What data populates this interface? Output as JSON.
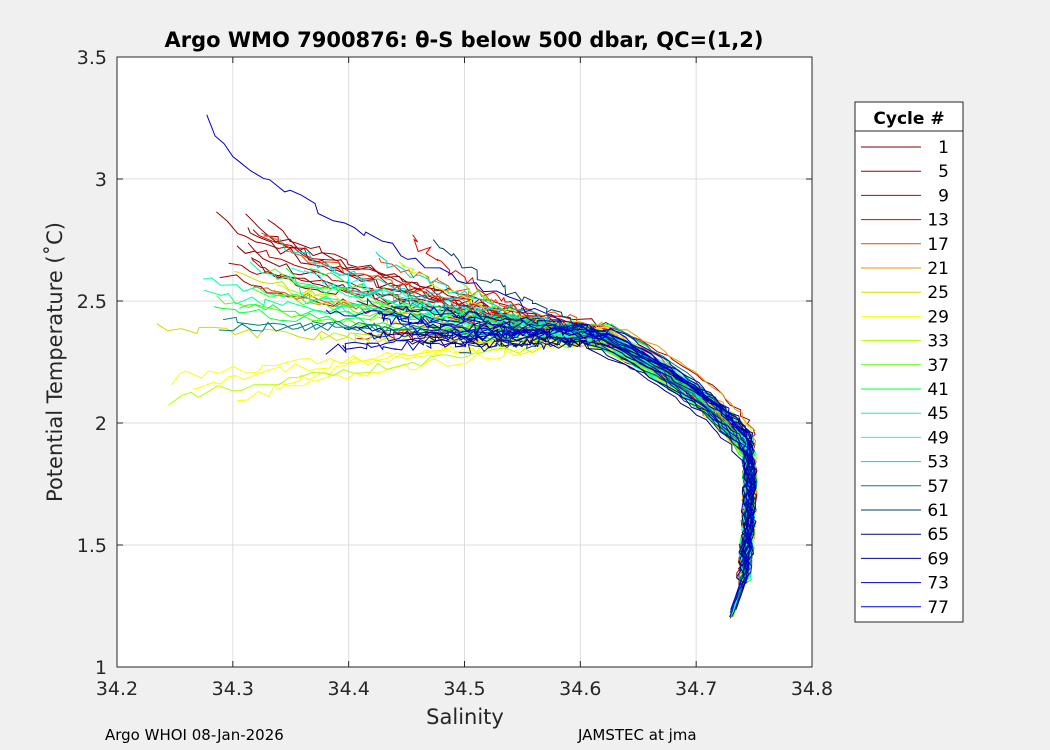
{
  "chart_data": {
    "type": "line",
    "title": "Argo WMO 7900876: θ-S below 500 dbar,  QC=(1,2)",
    "xlabel": "Salinity",
    "ylabel": "Potential Temperature (˚C)",
    "xlim": [
      34.2,
      34.8
    ],
    "ylim": [
      1.0,
      3.5
    ],
    "xticks": [
      "34.2",
      "34.3",
      "34.4",
      "34.5",
      "34.6",
      "34.7",
      "34.8"
    ],
    "yticks": [
      "1",
      "1.5",
      "2",
      "2.5",
      "3",
      "3.5"
    ],
    "grid": true,
    "legend_title": "Cycle #",
    "legend_position": "outside-right",
    "legend": [
      {
        "label": "1",
        "color": "#800000"
      },
      {
        "label": "5",
        "color": "#a00000"
      },
      {
        "label": "9",
        "color": "#c00000"
      },
      {
        "label": "13",
        "color": "#e00000"
      },
      {
        "label": "17",
        "color": "#e64d00"
      },
      {
        "label": "21",
        "color": "#e69500"
      },
      {
        "label": "25",
        "color": "#d9d900"
      },
      {
        "label": "29",
        "color": "#ffff00"
      },
      {
        "label": "33",
        "color": "#b3ff00"
      },
      {
        "label": "37",
        "color": "#55ff00"
      },
      {
        "label": "41",
        "color": "#00ff40"
      },
      {
        "label": "45",
        "color": "#00ffa0"
      },
      {
        "label": "49",
        "color": "#00ffff"
      },
      {
        "label": "53",
        "color": "#00d4d4"
      },
      {
        "label": "57",
        "color": "#008080"
      },
      {
        "label": "61",
        "color": "#004060"
      },
      {
        "label": "65",
        "color": "#000080"
      },
      {
        "label": "69",
        "color": "#0000a0"
      },
      {
        "label": "73",
        "color": "#0000c0"
      },
      {
        "label": "77",
        "color": "#0000e0"
      }
    ],
    "series_envelope": {
      "deep_point": {
        "salinity": 34.73,
        "theta": 1.2
      },
      "salinity_range": [
        34.23,
        34.75
      ],
      "theta_range": [
        1.2,
        3.25
      ]
    }
  },
  "footer": {
    "left": "Argo WHOI 08-Jan-2026",
    "right": "JAMSTEC at jma"
  }
}
